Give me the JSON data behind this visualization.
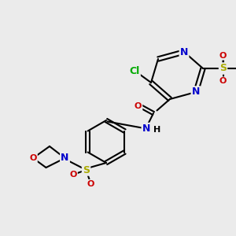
{
  "bg_color": "#ebebeb",
  "bond_color": "#000000",
  "bond_width": 1.5,
  "atom_colors": {
    "C": "#000000",
    "N": "#0000cc",
    "O": "#cc0000",
    "S": "#aaaa00",
    "Cl": "#00aa00",
    "H": "#000000"
  },
  "font_size": 8
}
